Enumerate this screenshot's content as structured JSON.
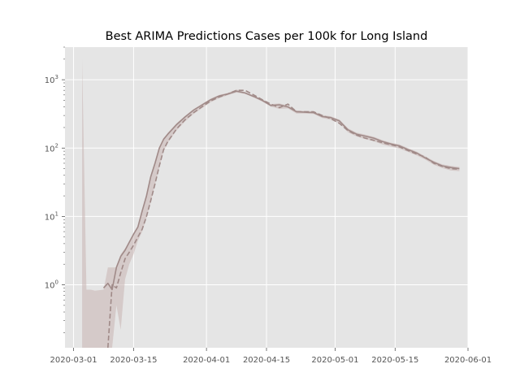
{
  "chart_data": {
    "type": "line",
    "title": "Best ARIMA Predictions Cases per 100k for Long Island",
    "xlabel": "",
    "ylabel": "",
    "x_axis": {
      "type": "date",
      "range": [
        "2020-02-28",
        "2020-06-01"
      ],
      "ticks": [
        "2020-03-01",
        "2020-03-15",
        "2020-04-01",
        "2020-04-15",
        "2020-05-01",
        "2020-05-15",
        "2020-06-01"
      ]
    },
    "y_axis": {
      "scale": "log",
      "range": [
        0.12,
        3000
      ],
      "ticks": [
        {
          "value": 1,
          "base": "10",
          "exp": "0"
        },
        {
          "value": 10,
          "base": "10",
          "exp": "1"
        },
        {
          "value": 100,
          "base": "10",
          "exp": "2"
        },
        {
          "value": 1000,
          "base": "10",
          "exp": "3"
        }
      ]
    },
    "grid": true,
    "legend": "none",
    "colors": {
      "background": "#e5e5e5",
      "grid": "#ffffff",
      "series": "#a08a88",
      "band": "#c9b5b3"
    },
    "series": [
      {
        "style": "solid",
        "x": [
          "2020-03-08",
          "2020-03-09",
          "2020-03-10",
          "2020-03-11",
          "2020-03-12",
          "2020-03-13",
          "2020-03-14",
          "2020-03-15",
          "2020-03-16",
          "2020-03-17",
          "2020-03-18",
          "2020-03-19",
          "2020-03-20",
          "2020-03-21",
          "2020-03-22",
          "2020-03-23",
          "2020-03-25",
          "2020-03-27",
          "2020-03-29",
          "2020-03-31",
          "2020-04-02",
          "2020-04-04",
          "2020-04-06",
          "2020-04-08",
          "2020-04-10",
          "2020-04-12",
          "2020-04-14",
          "2020-04-16",
          "2020-04-18",
          "2020-04-20",
          "2020-04-22",
          "2020-04-24",
          "2020-04-26",
          "2020-04-28",
          "2020-04-30",
          "2020-05-02",
          "2020-05-04",
          "2020-05-06",
          "2020-05-08",
          "2020-05-10",
          "2020-05-12",
          "2020-05-14",
          "2020-05-16",
          "2020-05-18",
          "2020-05-20",
          "2020-05-22",
          "2020-05-24",
          "2020-05-26",
          "2020-05-28",
          "2020-05-30"
        ],
        "values": [
          0.9,
          1.05,
          0.85,
          1.8,
          2.6,
          3.2,
          4.2,
          5.5,
          7,
          12,
          20,
          38,
          60,
          100,
          135,
          160,
          220,
          285,
          360,
          430,
          510,
          580,
          620,
          680,
          640,
          570,
          500,
          420,
          430,
          400,
          340,
          335,
          330,
          290,
          280,
          250,
          185,
          160,
          150,
          140,
          125,
          115,
          108,
          95,
          85,
          72,
          62,
          55,
          52,
          50
        ]
      },
      {
        "style": "dashed",
        "x": [
          "2020-03-09",
          "2020-03-10",
          "2020-03-11",
          "2020-03-12",
          "2020-03-13",
          "2020-03-14",
          "2020-03-15",
          "2020-03-16",
          "2020-03-17",
          "2020-03-18",
          "2020-03-19",
          "2020-03-20",
          "2020-03-21",
          "2020-03-22",
          "2020-03-23",
          "2020-03-25",
          "2020-03-27",
          "2020-03-29",
          "2020-03-31",
          "2020-04-02",
          "2020-04-04",
          "2020-04-06",
          "2020-04-08",
          "2020-04-10",
          "2020-04-12",
          "2020-04-14",
          "2020-04-16",
          "2020-04-18",
          "2020-04-20",
          "2020-04-22",
          "2020-04-24",
          "2020-04-26",
          "2020-04-28",
          "2020-04-30",
          "2020-05-02",
          "2020-05-04",
          "2020-05-06",
          "2020-05-08",
          "2020-05-10",
          "2020-05-12",
          "2020-05-14",
          "2020-05-16",
          "2020-05-18",
          "2020-05-20",
          "2020-05-22",
          "2020-05-24",
          "2020-05-26",
          "2020-05-28",
          "2020-05-30"
        ],
        "values": [
          0.12,
          1.0,
          0.9,
          1.5,
          2.4,
          3.0,
          3.8,
          5,
          6.5,
          10,
          17,
          30,
          55,
          95,
          125,
          190,
          260,
          330,
          405,
          490,
          560,
          620,
          700,
          700,
          600,
          510,
          440,
          390,
          440,
          340,
          340,
          340,
          300,
          270,
          230,
          180,
          155,
          140,
          130,
          120,
          112,
          104,
          92,
          82,
          74,
          60,
          54,
          50,
          49
        ]
      }
    ],
    "confidence_band": {
      "x": [
        "2020-03-03",
        "2020-03-04",
        "2020-03-05",
        "2020-03-06",
        "2020-03-08",
        "2020-03-09",
        "2020-03-10",
        "2020-03-11",
        "2020-03-12",
        "2020-03-13",
        "2020-03-14",
        "2020-03-15",
        "2020-03-16",
        "2020-03-17",
        "2020-03-18",
        "2020-03-19",
        "2020-03-20",
        "2020-03-21",
        "2020-03-22",
        "2020-03-23",
        "2020-03-25",
        "2020-03-27",
        "2020-03-29",
        "2020-03-31",
        "2020-04-02",
        "2020-04-04",
        "2020-04-06",
        "2020-04-08",
        "2020-04-10",
        "2020-04-12",
        "2020-04-14",
        "2020-04-16",
        "2020-04-18",
        "2020-04-20",
        "2020-04-22",
        "2020-04-24",
        "2020-04-26",
        "2020-04-28",
        "2020-04-30",
        "2020-05-02",
        "2020-05-04",
        "2020-05-06",
        "2020-05-08",
        "2020-05-10",
        "2020-05-12",
        "2020-05-14",
        "2020-05-16",
        "2020-05-18",
        "2020-05-20",
        "2020-05-22",
        "2020-05-24",
        "2020-05-26",
        "2020-05-28",
        "2020-05-30"
      ],
      "upper": [
        2000,
        0.85,
        0.85,
        0.82,
        0.85,
        1.8,
        1.8,
        1.8,
        2.8,
        3.4,
        4.2,
        5.5,
        7,
        12,
        21,
        40,
        64,
        105,
        140,
        168,
        230,
        295,
        372,
        445,
        530,
        600,
        645,
        720,
        660,
        590,
        520,
        440,
        450,
        420,
        355,
        350,
        345,
        305,
        292,
        262,
        195,
        168,
        158,
        147,
        131,
        120,
        113,
        100,
        89,
        76,
        65,
        58,
        55,
        53
      ],
      "lower": [
        0.12,
        0.12,
        0.12,
        0.12,
        0.12,
        0.12,
        0.12,
        0.5,
        0.22,
        1.2,
        2.0,
        2.8,
        4.4,
        6,
        9.5,
        16,
        29,
        52,
        90,
        120,
        180,
        245,
        315,
        385,
        470,
        540,
        595,
        650,
        620,
        550,
        480,
        405,
        375,
        380,
        320,
        320,
        315,
        275,
        260,
        230,
        170,
        148,
        135,
        126,
        113,
        105,
        98,
        88,
        78,
        68,
        57,
        51,
        47,
        46
      ]
    }
  }
}
